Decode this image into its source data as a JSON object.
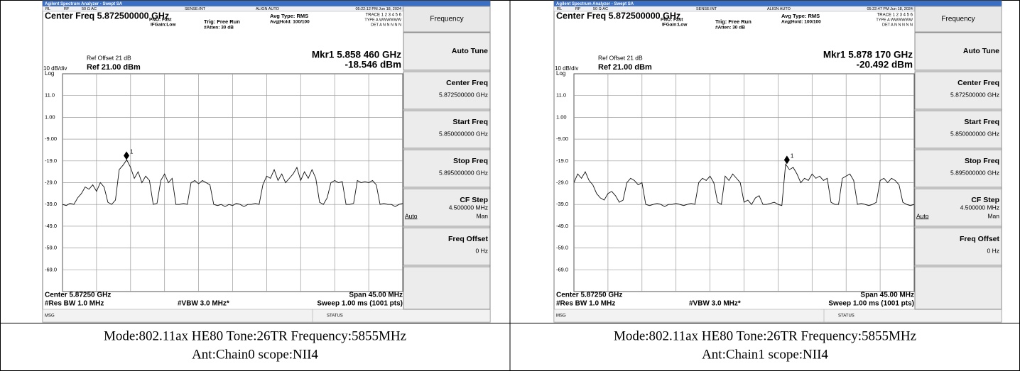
{
  "screen": {
    "title": "Agilent Spectrum Analyzer - Swept SA",
    "status": [
      "RL",
      "RF",
      "50 Ω  AC",
      "SENSE:INT",
      "ALIGN AUTO"
    ],
    "center": "Center Freq 5.872500000 GHz",
    "pno": "PNO: Fast",
    "ifgain": "IFGain:Low",
    "trig": "Trig: Free Run",
    "atten": "#Atten: 30 dB",
    "avgtype": "Avg Type: RMS",
    "avghold": "Avg|Hold: 100/100",
    "tracerow": "TRACE 1 2 3 4 5 6",
    "typerow": "TYPE A WWWWWW",
    "detrow": "DET A N N N N N",
    "refoffset": "Ref Offset 21 dB",
    "scale": "10 dB/div",
    "log": "Log",
    "ref": "Ref 21.00 dBm",
    "xcenter": "Center 5.87250 GHz",
    "span": "Span 45.00 MHz",
    "rbw": "#Res BW 1.0 MHz",
    "vbw": "#VBW 3.0 MHz*",
    "sweep": "Sweep  1.00 ms (1001 pts)",
    "msg": "MSG",
    "statusbar": "STATUS",
    "markerno": "1",
    "softtitle": "Frequency",
    "softkeys": [
      {
        "label": "Auto Tune"
      },
      {
        "label": "Center Freq",
        "value": "5.872500000 GHz"
      },
      {
        "label": "Start Freq",
        "value": "5.850000000 GHz"
      },
      {
        "label": "Stop Freq",
        "value": "5.895000000 GHz"
      },
      {
        "label": "CF Step",
        "value": "4.500000 MHz",
        "options": [
          "Auto",
          "Man"
        ]
      },
      {
        "label": "Freq Offset",
        "value": "0 Hz"
      }
    ]
  },
  "ylim": [
    -79,
    21
  ],
  "yticks": [
    {
      "value": 11,
      "label": "11.0"
    },
    {
      "value": 1,
      "label": "1.00"
    },
    {
      "value": -9,
      "label": "-9.00"
    },
    {
      "value": -19,
      "label": "-19.0"
    },
    {
      "value": -29,
      "label": "-29.0"
    },
    {
      "value": -39,
      "label": "-39.0"
    },
    {
      "value": -49,
      "label": "-49.0"
    },
    {
      "value": -59,
      "label": "-59.0"
    },
    {
      "value": -69,
      "label": "-69.0"
    }
  ],
  "xlim": [
    5.85,
    5.895
  ],
  "xticks": [
    5.8545,
    5.859,
    5.8635,
    5.868,
    5.8725,
    5.877,
    5.8815,
    5.886,
    5.8905
  ],
  "trace_x": [
    5.85,
    5.8505,
    5.851,
    5.8515,
    5.852,
    5.8525,
    5.853,
    5.8535,
    5.854,
    5.8545,
    5.855,
    5.8555,
    5.856,
    5.8565,
    5.857,
    5.8575,
    5.858,
    5.8585,
    5.859,
    5.8595,
    5.86,
    5.8605,
    5.861,
    5.8615,
    5.862,
    5.8625,
    5.863,
    5.8635,
    5.864,
    5.8645,
    5.865,
    5.8655,
    5.866,
    5.8665,
    5.867,
    5.8675,
    5.868,
    5.8685,
    5.869,
    5.8695,
    5.87,
    5.8705,
    5.871,
    5.8715,
    5.872,
    5.8725,
    5.873,
    5.8735,
    5.874,
    5.8745,
    5.875,
    5.8755,
    5.876,
    5.8765,
    5.877,
    5.8775,
    5.878,
    5.8785,
    5.879,
    5.8795,
    5.88,
    5.8805,
    5.881,
    5.8815,
    5.882,
    5.8825,
    5.883,
    5.8835,
    5.884,
    5.8845,
    5.885,
    5.8855,
    5.886,
    5.8865,
    5.887,
    5.8875,
    5.888,
    5.8885,
    5.889,
    5.8895,
    5.89,
    5.8905,
    5.891,
    5.8915,
    5.892,
    5.8925,
    5.893,
    5.8935,
    5.894,
    5.8945,
    5.895
  ],
  "panels": [
    {
      "time": "05:22:12 PM Jun 18, 2024",
      "marker_freq_text": "Mkr1 5.858 460 GHz",
      "marker_amp_text": "-18.546 dBm",
      "marker": {
        "freq": 5.85846,
        "dbm": -18.546
      },
      "trace": [
        -39,
        -39.5,
        -38.5,
        -39,
        -36,
        -34,
        -31,
        -32,
        -30,
        -33,
        -29,
        -31,
        -38,
        -39,
        -37,
        -23,
        -21,
        -18.5,
        -22,
        -27,
        -24,
        -29,
        -26,
        -28,
        -39,
        -38.5,
        -28,
        -25,
        -29,
        -27,
        -39,
        -39,
        -38.5,
        -39,
        -29,
        -28,
        -29.5,
        -28,
        -29,
        -30,
        -39,
        -39.5,
        -39,
        -40,
        -39,
        -39.5,
        -38.5,
        -39,
        -40,
        -39,
        -39,
        -38.5,
        -39,
        -30,
        -26,
        -27,
        -23,
        -28,
        -25,
        -29,
        -27,
        -25,
        -22,
        -28,
        -24,
        -27,
        -23,
        -27,
        -38,
        -39,
        -36,
        -29,
        -28,
        -29,
        -28.5,
        -39,
        -39,
        -38.5,
        -28,
        -29,
        -28.5,
        -29,
        -28,
        -30,
        -39,
        -38.5,
        -39,
        -39,
        -40,
        -39,
        -38.5
      ],
      "caption": [
        "Mode:802.11ax HE80 Tone:26TR Frequency:5855MHz",
        "Ant:Chain0 scope:NII4"
      ]
    },
    {
      "time": "05:22:47 PM Jun 18, 2024",
      "marker_freq_text": "Mkr1 5.878 170 GHz",
      "marker_amp_text": "-20.492 dBm",
      "marker": {
        "freq": 5.87817,
        "dbm": -20.492
      },
      "trace": [
        -29,
        -25,
        -27,
        -24,
        -28,
        -30,
        -34,
        -36,
        -37,
        -34,
        -33,
        -35,
        -38,
        -37,
        -29,
        -27,
        -28,
        -30,
        -29,
        -39,
        -39.5,
        -39,
        -38.5,
        -39,
        -40,
        -39,
        -39,
        -38.5,
        -39,
        -39.5,
        -39,
        -38.5,
        -39,
        -29,
        -27,
        -28,
        -26,
        -29,
        -38,
        -39,
        -26,
        -28,
        -25,
        -27,
        -29,
        -38,
        -37,
        -39,
        -36,
        -35,
        -39,
        -39,
        -38.5,
        -38,
        -39,
        -39.5,
        -20.5,
        -23,
        -22,
        -25,
        -29,
        -27,
        -28,
        -25,
        -27,
        -26,
        -28,
        -27,
        -38,
        -39,
        -39,
        -27,
        -26,
        -25,
        -28,
        -39,
        -38.5,
        -39,
        -39.5,
        -39,
        -38,
        -28,
        -27,
        -29,
        -27,
        -28,
        -30,
        -38,
        -39,
        -39.5,
        -39
      ],
      "caption": [
        "Mode:802.11ax HE80 Tone:26TR Frequency:5855MHz",
        "Ant:Chain1 scope:NII4"
      ]
    }
  ]
}
